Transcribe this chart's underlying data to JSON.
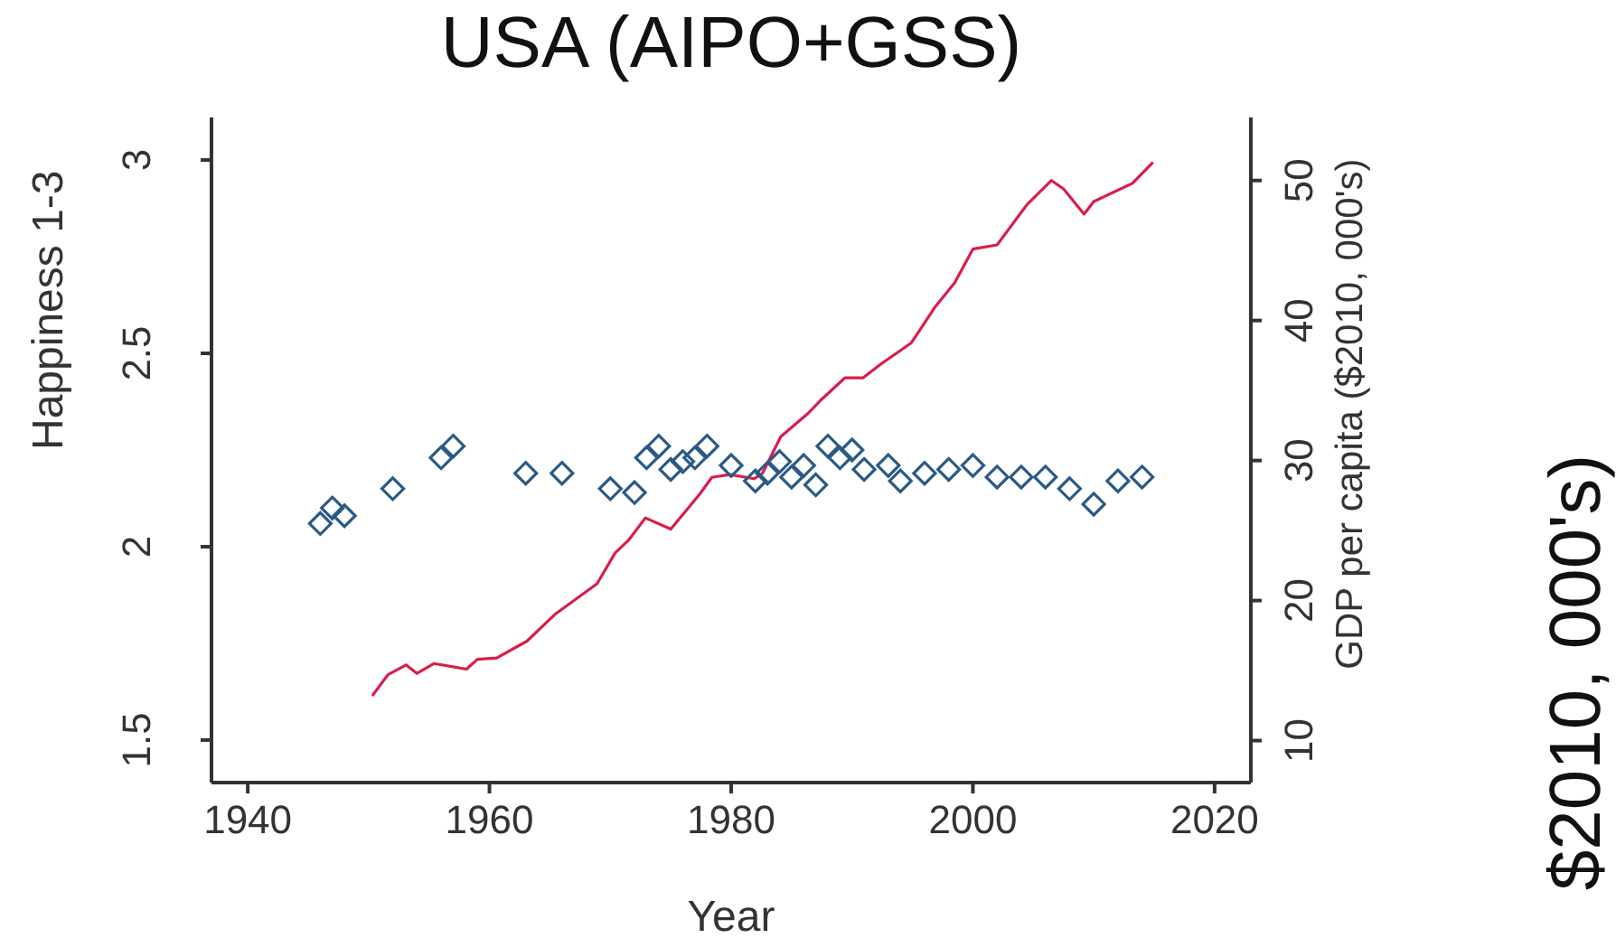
{
  "chart_data": {
    "type": "scatter",
    "title": "USA (AIPO+GSS)",
    "xlabel": "Year",
    "ylabel": "Happiness 1-3",
    "y2label": "GDP per capita ($2010, 000's)",
    "annotations": [
      "$2010, 000's)"
    ],
    "xlim": [
      1937,
      2023
    ],
    "xticks": [
      1940,
      1960,
      1980,
      2000,
      2020
    ],
    "ylim": [
      1.39,
      3.11
    ],
    "yticks": [
      1.5,
      2,
      2.5,
      3
    ],
    "y2lim": [
      7,
      54.5
    ],
    "y2ticks": [
      10,
      20,
      30,
      40,
      50
    ],
    "grid": false,
    "legend": false,
    "series": [
      {
        "marker": "diamond",
        "color": "#2a5a85",
        "x": [
          1946,
          1947,
          1948,
          1952,
          1956,
          1957,
          1963,
          1966,
          1970,
          1972,
          1973,
          1974,
          1975,
          1976,
          1977,
          1978,
          1980,
          1982,
          1983,
          1984,
          1985,
          1986,
          1987,
          1988,
          1989,
          1990,
          1991,
          1993,
          1994,
          1996,
          1998,
          2000,
          2002,
          2004,
          2006,
          2008,
          2010,
          2012,
          2014
        ],
        "values": [
          2.06,
          2.1,
          2.08,
          2.15,
          2.23,
          2.26,
          2.19,
          2.19,
          2.15,
          2.14,
          2.23,
          2.26,
          2.2,
          2.22,
          2.23,
          2.26,
          2.21,
          2.17,
          2.19,
          2.22,
          2.18,
          2.21,
          2.16,
          2.26,
          2.23,
          2.25,
          2.2,
          2.21,
          2.17,
          2.19,
          2.2,
          2.21,
          2.18,
          2.18,
          2.18,
          2.15,
          2.11,
          2.17,
          2.18
        ]
      },
      {
        "type": "line",
        "axis": "y2",
        "marker": "none",
        "color": "#d81e4a",
        "x": [
          1950.3,
          1951.6,
          1953.1,
          1954,
          1955.4,
          1958.1,
          1959,
          1960.6,
          1963.1,
          1965.4,
          1968.9,
          1970.4,
          1971.5,
          1972.9,
          1975,
          1977.4,
          1978.4,
          1979.9,
          1981.9,
          1982.6,
          1984.1,
          1986.4,
          1987.4,
          1989.4,
          1990.9,
          1992.4,
          1994.9,
          1996.9,
          1998.5,
          2000,
          2002,
          2004.5,
          2006.5,
          2007.5,
          2009.2,
          2010,
          2013.2,
          2014.9
        ],
        "values": [
          13.2,
          14.7,
          15.4,
          14.8,
          15.5,
          15.1,
          15.8,
          15.9,
          17.1,
          19,
          21.2,
          23.4,
          24.3,
          25.9,
          25.1,
          27.6,
          28.8,
          29,
          28.7,
          29.1,
          31.7,
          33.4,
          34.3,
          35.9,
          35.9,
          36.9,
          38.4,
          41,
          42.7,
          45.1,
          45.4,
          48.3,
          50,
          49.4,
          47.6,
          48.5,
          49.8,
          51.3
        ]
      }
    ]
  }
}
